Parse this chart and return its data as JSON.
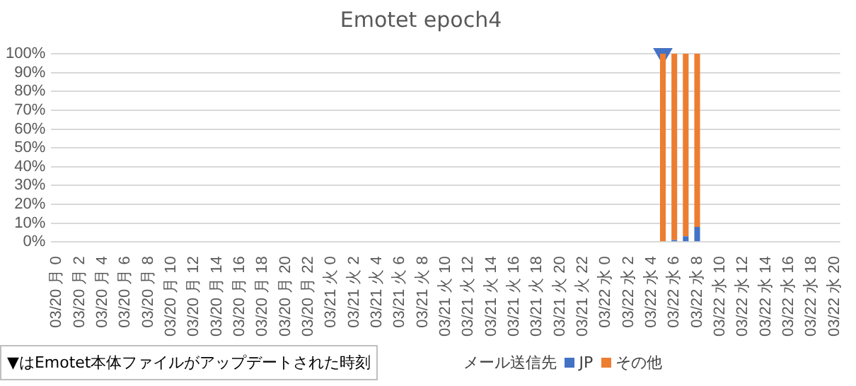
{
  "chart_data": {
    "type": "bar",
    "title": "Emotet epoch4",
    "stacked": true,
    "legend": "bottom",
    "legend_title": "メール送信先",
    "grid": "y",
    "marker": "triangle",
    "categories": [
      "03/20 月 0",
      null,
      "03/20 月 2",
      null,
      "03/20 月 4",
      null,
      "03/20 月 6",
      null,
      "03/20 月 8",
      null,
      "03/20 月 10",
      null,
      "03/20 月 12",
      null,
      "03/20 月 14",
      null,
      "03/20 月 16",
      null,
      "03/20 月 18",
      null,
      "03/20 月 20",
      null,
      "03/20 月 22",
      null,
      "03/21 火 0",
      null,
      "03/21 火 2",
      null,
      "03/21 火 4",
      null,
      "03/21 火 6",
      null,
      "03/21 火 8",
      null,
      "03/21 火 10",
      null,
      "03/21 火 12",
      null,
      "03/21 火 14",
      null,
      "03/21 火 16",
      null,
      "03/21 火 18",
      null,
      "03/21 火 20",
      null,
      "03/21 火 22",
      null,
      "03/22 水 0",
      null,
      "03/22 水 2",
      null,
      "03/22 水 4",
      null,
      "03/22 水 6",
      null,
      "03/22 水 8",
      null,
      "03/22 水 10",
      null,
      "03/22 水 12",
      null,
      "03/22 水 14",
      null,
      "03/22 水 16",
      null,
      "03/22 水 18",
      null,
      "03/22 水 20"
    ],
    "ylim": [
      0,
      100
    ],
    "yticks": [
      {
        "value": 0,
        "label": "0%"
      },
      {
        "value": 10,
        "label": "10%"
      },
      {
        "value": 20,
        "label": "20%"
      },
      {
        "value": 30,
        "label": "30%"
      },
      {
        "value": 40,
        "label": "40%"
      },
      {
        "value": 50,
        "label": "50%"
      },
      {
        "value": 60,
        "label": "60%"
      },
      {
        "value": 70,
        "label": "70%"
      },
      {
        "value": 80,
        "label": "80%"
      },
      {
        "value": 90,
        "label": "90%"
      },
      {
        "value": 100,
        "label": "100%"
      }
    ],
    "series": [
      {
        "name": "JP",
        "color": "#4472c4",
        "values": [
          null,
          null,
          null,
          null,
          null,
          null,
          null,
          null,
          null,
          null,
          null,
          null,
          null,
          null,
          null,
          null,
          null,
          null,
          null,
          null,
          null,
          null,
          null,
          null,
          null,
          null,
          null,
          null,
          null,
          null,
          null,
          null,
          null,
          null,
          null,
          null,
          null,
          null,
          null,
          null,
          null,
          null,
          null,
          null,
          null,
          null,
          null,
          null,
          null,
          null,
          null,
          null,
          null,
          0,
          1,
          3,
          8,
          null,
          null,
          null,
          null,
          null,
          null,
          null,
          null,
          null,
          null,
          null,
          null
        ]
      },
      {
        "name": "その他",
        "color": "#ed7d31",
        "values": [
          null,
          null,
          null,
          null,
          null,
          null,
          null,
          null,
          null,
          null,
          null,
          null,
          null,
          null,
          null,
          null,
          null,
          null,
          null,
          null,
          null,
          null,
          null,
          null,
          null,
          null,
          null,
          null,
          null,
          null,
          null,
          null,
          null,
          null,
          null,
          null,
          null,
          null,
          null,
          null,
          null,
          null,
          null,
          null,
          null,
          null,
          null,
          null,
          null,
          null,
          null,
          null,
          null,
          100,
          99,
          97,
          92,
          null,
          null,
          null,
          null,
          null,
          null,
          null,
          null,
          null,
          null,
          null,
          null
        ]
      },
      {
        "type": "scatter",
        "color": "#4472c4",
        "values": [
          null,
          null,
          null,
          null,
          null,
          null,
          null,
          null,
          null,
          null,
          null,
          null,
          null,
          null,
          null,
          null,
          null,
          null,
          null,
          null,
          null,
          null,
          null,
          null,
          null,
          null,
          null,
          null,
          null,
          null,
          null,
          null,
          null,
          null,
          null,
          null,
          null,
          null,
          null,
          null,
          null,
          null,
          null,
          null,
          null,
          null,
          null,
          null,
          null,
          null,
          null,
          null,
          null,
          100,
          null,
          null,
          null,
          null,
          null,
          null,
          null,
          null,
          null,
          null,
          null,
          null,
          null,
          null,
          null
        ]
      }
    ],
    "annotations": [
      "▼はEmotet本体ファイルがアップデートされた時刻"
    ]
  }
}
